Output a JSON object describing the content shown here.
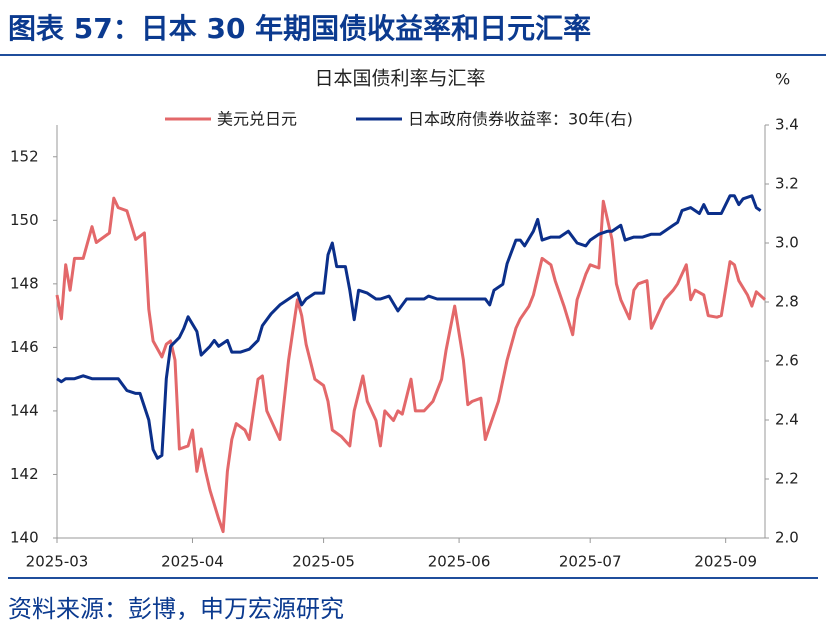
{
  "title": "图表 57：日本 30 年期国债收益率和日元汇率",
  "source": "资料来源：彭博，申万宏源研究",
  "chart_data": {
    "type": "line",
    "title": "日本国债利率与汇率",
    "y2_unit": "%",
    "legend": "top",
    "xlim": [
      0,
      162
    ],
    "xticks": [
      {
        "value": 0,
        "label": "2025-03"
      },
      {
        "value": 31,
        "label": "2025-04"
      },
      {
        "value": 61,
        "label": "2025-05"
      },
      {
        "value": 92,
        "label": "2025-06"
      },
      {
        "value": 122,
        "label": "2025-07"
      },
      {
        "value": 153,
        "label": "2025-09"
      }
    ],
    "ylim": [
      140,
      153
    ],
    "yticks": [
      140,
      142,
      144,
      146,
      148,
      150,
      152
    ],
    "y2lim": [
      2.0,
      3.4
    ],
    "y2ticks": [
      {
        "value": 2.0,
        "label": "2.0"
      },
      2.2,
      2.4,
      2.6,
      2.8,
      {
        "value": 3.0,
        "label": "3.0"
      },
      3.2,
      3.4
    ],
    "series": [
      {
        "name": "美元兑日元",
        "color": "#e3686a",
        "x": [
          0,
          1,
          2,
          3,
          4,
          6,
          8,
          9,
          12,
          13,
          14,
          16,
          18,
          19,
          20,
          21,
          22,
          24,
          25,
          26,
          27,
          28,
          30,
          31,
          32,
          33,
          34,
          35,
          37,
          38,
          39,
          40,
          41,
          43,
          44,
          46,
          47,
          48,
          50,
          51,
          53,
          55,
          56,
          57,
          59,
          61,
          62,
          63,
          65,
          67,
          68,
          70,
          71,
          73,
          74,
          75,
          77,
          78,
          79,
          81,
          82,
          84,
          86,
          88,
          89,
          91,
          93,
          94,
          95,
          97,
          98,
          100,
          101,
          103,
          105,
          106,
          108,
          109,
          111,
          113,
          114,
          116,
          118,
          119,
          121,
          122,
          124,
          125,
          127,
          128,
          129,
          131,
          132,
          133,
          135,
          136,
          138,
          139,
          141,
          142,
          144,
          145,
          146,
          148,
          149,
          151,
          152,
          154,
          155,
          156,
          158,
          159,
          160,
          162
        ],
        "values": [
          147.65,
          146.9,
          148.6,
          147.8,
          148.8,
          148.8,
          149.8,
          149.3,
          149.6,
          150.7,
          150.4,
          150.3,
          149.4,
          149.5,
          149.6,
          147.2,
          146.2,
          145.7,
          146.1,
          146.2,
          145.6,
          142.8,
          142.9,
          143.4,
          142.1,
          142.8,
          142.1,
          141.5,
          140.6,
          140.2,
          142.1,
          143.1,
          143.6,
          143.4,
          143.1,
          145.0,
          145.1,
          144.0,
          143.4,
          143.1,
          145.6,
          147.5,
          147.0,
          146.1,
          145.0,
          144.8,
          144.3,
          143.4,
          143.2,
          142.9,
          144.0,
          145.1,
          144.3,
          143.7,
          142.9,
          144.0,
          143.7,
          144.0,
          143.9,
          145.0,
          144.0,
          144.0,
          144.3,
          145.0,
          145.9,
          147.3,
          145.6,
          144.2,
          144.3,
          144.4,
          143.1,
          143.9,
          144.3,
          145.6,
          146.6,
          146.9,
          147.3,
          147.65,
          148.8,
          148.6,
          148.1,
          147.3,
          146.4,
          147.5,
          148.3,
          148.6,
          148.5,
          150.6,
          149.4,
          148.0,
          147.5,
          146.9,
          147.8,
          148.0,
          148.1,
          146.6,
          147.2,
          147.5,
          147.8,
          148.0,
          148.6,
          147.5,
          147.8,
          147.65,
          147.0,
          146.95,
          147.0,
          148.7,
          148.6,
          148.1,
          147.65,
          147.3,
          147.75,
          147.5
        ]
      },
      {
        "name": "日本政府债券收益率：30年(右)",
        "color": "#0b2f8a",
        "axis": "y2",
        "x": [
          0,
          1,
          2,
          4,
          6,
          8,
          10,
          12,
          14,
          16,
          18,
          19,
          21,
          22,
          23,
          24,
          25,
          26,
          28,
          29,
          30,
          32,
          33,
          35,
          36,
          37,
          39,
          40,
          42,
          44,
          46,
          47,
          49,
          51,
          53,
          55,
          56,
          57,
          59,
          61,
          62,
          63,
          64,
          66,
          67,
          68,
          69,
          71,
          73,
          74,
          76,
          78,
          80,
          82,
          84,
          85,
          87,
          89,
          90,
          92,
          94,
          96,
          98,
          99,
          100,
          102,
          103,
          105,
          106,
          107,
          109,
          110,
          111,
          113,
          115,
          117,
          119,
          121,
          122,
          124,
          126,
          127,
          129,
          130,
          132,
          134,
          136,
          138,
          139,
          141,
          142,
          143,
          145,
          147,
          148,
          149,
          151,
          152,
          154,
          155,
          156,
          157,
          159,
          160,
          161
        ],
        "values": [
          2.54,
          2.53,
          2.54,
          2.54,
          2.55,
          2.54,
          2.54,
          2.54,
          2.54,
          2.5,
          2.49,
          2.49,
          2.4,
          2.3,
          2.27,
          2.28,
          2.54,
          2.65,
          2.68,
          2.71,
          2.75,
          2.7,
          2.62,
          2.65,
          2.67,
          2.65,
          2.67,
          2.63,
          2.63,
          2.64,
          2.67,
          2.72,
          2.76,
          2.79,
          2.81,
          2.83,
          2.79,
          2.81,
          2.83,
          2.83,
          2.96,
          3.0,
          2.92,
          2.92,
          2.84,
          2.74,
          2.84,
          2.83,
          2.81,
          2.81,
          2.82,
          2.77,
          2.81,
          2.81,
          2.81,
          2.82,
          2.81,
          2.81,
          2.81,
          2.81,
          2.81,
          2.81,
          2.81,
          2.79,
          2.84,
          2.86,
          2.93,
          3.01,
          3.01,
          2.99,
          3.04,
          3.08,
          3.01,
          3.02,
          3.02,
          3.04,
          3.0,
          2.99,
          3.01,
          3.03,
          3.04,
          3.04,
          3.06,
          3.01,
          3.02,
          3.02,
          3.03,
          3.03,
          3.04,
          3.06,
          3.07,
          3.11,
          3.12,
          3.1,
          3.13,
          3.1,
          3.1,
          3.1,
          3.16,
          3.16,
          3.13,
          3.15,
          3.16,
          3.12,
          3.11
        ]
      }
    ]
  }
}
